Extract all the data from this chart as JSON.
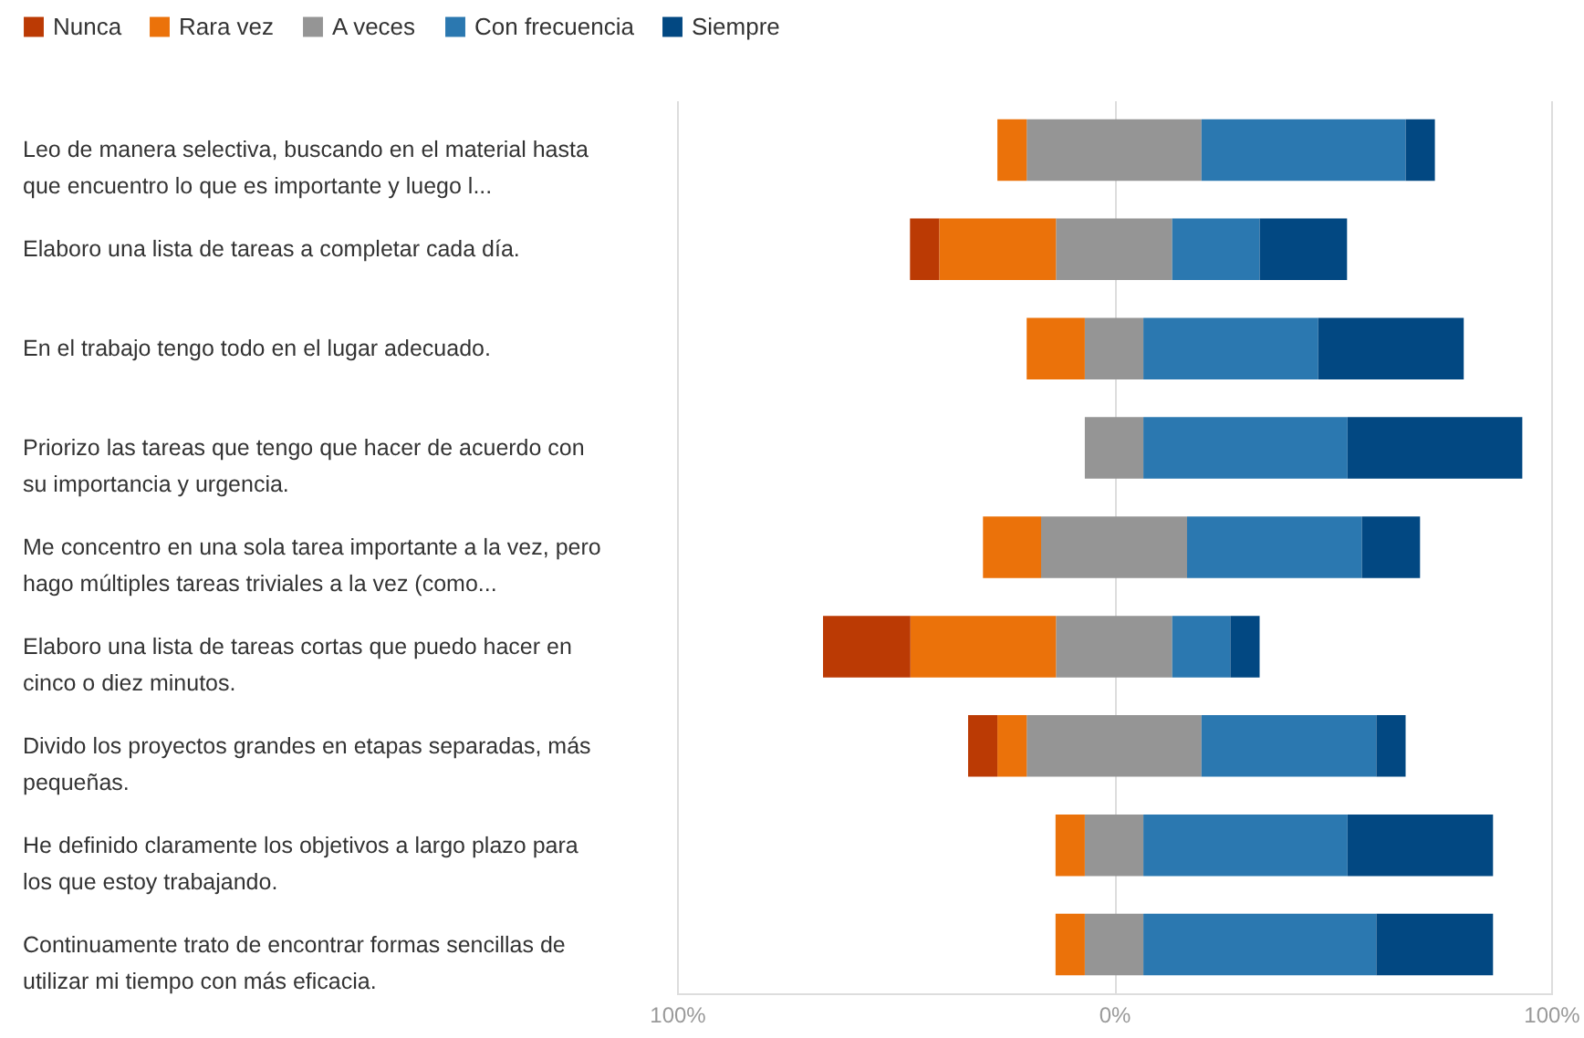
{
  "chart_data": {
    "type": "bar",
    "orientation": "horizontal",
    "stacked": true,
    "categories": [
      "Leo de manera selectiva, buscando en el material hasta que encuentro lo que es importante y luego l...",
      "Elaboro una lista de tareas a completar cada día.",
      "En el trabajo tengo todo en el lugar adecuado.",
      "Priorizo las tareas que tengo que hacer de acuerdo con su importancia y urgencia.",
      "Me concentro en una sola tarea importante a la vez, pero hago múltiples tareas triviales a la vez (como...",
      "Elaboro una lista de tareas cortas que puedo hacer en cinco o diez minutos.",
      "Divido los proyectos grandes en etapas separadas, más pequeñas.",
      "He definido claramente los objetivos a largo plazo para los que estoy trabajando.",
      "Continuamente trato de encontrar formas sencillas de utilizar mi tiempo con más eficacia."
    ],
    "series": [
      {
        "color": "#959595",
        "values": [
          -20,
          -13.3,
          -6.7,
          -6.7,
          -16.7,
          -13.3,
          -20,
          -6.7,
          -6.7
        ]
      },
      {
        "name": "A veces",
        "color": "#959595",
        "values": [
          20,
          13.3,
          6.7,
          6.7,
          16.7,
          13.3,
          20,
          6.7,
          6.7
        ]
      },
      {
        "name": "Rara vez",
        "color": "#eb720a",
        "values": [
          -6.7,
          -26.7,
          -13.3,
          0,
          -13.3,
          -33.3,
          -6.7,
          -6.7,
          -6.7
        ]
      },
      {
        "name": "Con frecuencia",
        "color": "#2b78b0",
        "values": [
          46.7,
          20,
          40,
          46.7,
          40,
          13.3,
          40,
          46.7,
          53.3
        ]
      },
      {
        "name": "Nunca",
        "color": "#bb3a04",
        "values": [
          0,
          -6.7,
          0,
          0,
          0,
          -20,
          -6.7,
          0,
          0
        ]
      },
      {
        "name": "Siempre",
        "color": "#024882",
        "values": [
          6.7,
          20,
          33.3,
          40,
          13.3,
          6.7,
          6.7,
          33.3,
          26.7
        ]
      }
    ],
    "xlim": [
      -100,
      100
    ],
    "xticks": [
      {
        "value": -100,
        "label": "100%"
      },
      {
        "value": 0,
        "label": "0%"
      },
      {
        "value": 100,
        "label": "100%"
      }
    ],
    "grid": "x",
    "legend": "top left"
  }
}
